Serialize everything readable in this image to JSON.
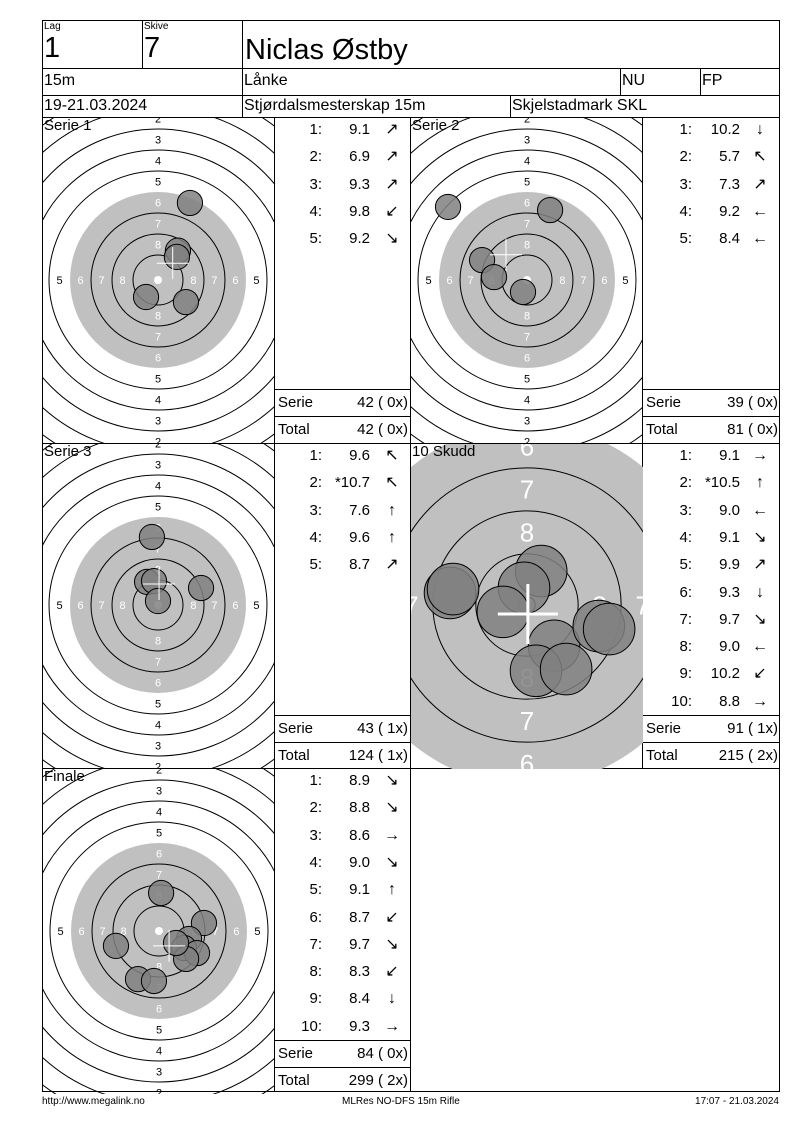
{
  "header": {
    "lag_label": "Lag",
    "lag": "1",
    "skive_label": "Skive",
    "skive": "7",
    "name": "Niclas Østby",
    "distance": "15m",
    "club": "Lånke",
    "class": "NU",
    "weapon": "FP",
    "date": "19-21.03.2024",
    "event": "Stjørdalsmesterskap 15m",
    "venue": "Skjelstadmark SKL"
  },
  "colors": {
    "target_gray": "#c0c0c0",
    "shot": "#808080",
    "mark": "#ffffff"
  },
  "shot_units": "rings",
  "panels": [
    {
      "id": "s1",
      "title": "Serie 1",
      "shots": [
        [
          1.52,
          -3.67
        ],
        [
          0.95,
          -1.4
        ],
        [
          0.9,
          -1.1
        ],
        [
          -0.57,
          0.81
        ],
        [
          1.33,
          1.05
        ]
      ],
      "mean": [
        0.7,
        -0.8
      ],
      "scores": [
        {
          "n": "1:",
          "v": "9.1",
          "dir": "↗"
        },
        {
          "n": "2:",
          "v": "6.9",
          "dir": "↗"
        },
        {
          "n": "3:",
          "v": "9.3",
          "dir": "↗"
        },
        {
          "n": "4:",
          "v": "9.8",
          "dir": "↙"
        },
        {
          "n": "5:",
          "v": "9.2",
          "dir": "↘"
        }
      ],
      "serie_label": "Serie",
      "serie": "42 ( 0x)",
      "total_label": "Total",
      "total": "42 ( 0x)"
    },
    {
      "id": "s2",
      "title": "Serie 2",
      "shots": [
        [
          1.1,
          -3.33
        ],
        [
          -3.76,
          -3.48
        ],
        [
          -2.14,
          -0.95
        ],
        [
          -1.57,
          -0.14
        ],
        [
          -0.19,
          0.57
        ]
      ],
      "mean": [
        -1.0,
        -1.2
      ],
      "scores": [
        {
          "n": "1:",
          "v": "10.2",
          "dir": "↓"
        },
        {
          "n": "2:",
          "v": "5.7",
          "dir": "↖"
        },
        {
          "n": "3:",
          "v": "7.3",
          "dir": "↗"
        },
        {
          "n": "4:",
          "v": "9.2",
          "dir": "←"
        },
        {
          "n": "5:",
          "v": "8.4",
          "dir": "←"
        }
      ],
      "serie_label": "Serie",
      "serie": "39 ( 0x)",
      "total_label": "Total",
      "total": "81 ( 0x)"
    },
    {
      "id": "s3",
      "title": "Serie 3",
      "shots": [
        [
          -0.29,
          -3.24
        ],
        [
          -0.52,
          -1.1
        ],
        [
          -0.19,
          -1.14
        ],
        [
          0.0,
          -0.19
        ],
        [
          2.05,
          -0.81
        ]
      ],
      "mean": [
        0.05,
        -1.0
      ],
      "scores": [
        {
          "n": "1:",
          "v": "9.6",
          "dir": "↖"
        },
        {
          "n": "2:",
          "v": "*10.7",
          "dir": "↖"
        },
        {
          "n": "3:",
          "v": "7.6",
          "dir": "↑"
        },
        {
          "n": "4:",
          "v": "9.6",
          "dir": "↑"
        },
        {
          "n": "5:",
          "v": "8.7",
          "dir": "↗"
        }
      ],
      "serie_label": "Serie",
      "serie": "43 ( 1x)",
      "total_label": "Total",
      "total": "124 ( 1x)"
    },
    {
      "id": "s10",
      "title": "10 Skudd",
      "shots": [
        [
          -1.79,
          -0.28
        ],
        [
          -1.72,
          -0.37
        ],
        [
          0.33,
          -0.79
        ],
        [
          -0.07,
          -0.4
        ],
        [
          -0.56,
          0.16
        ],
        [
          0.63,
          0.95
        ],
        [
          0.21,
          1.53
        ],
        [
          0.91,
          1.49
        ],
        [
          1.67,
          0.49
        ],
        [
          1.91,
          0.56
        ]
      ],
      "mean": [
        0.02,
        0.21
      ],
      "scores": [
        {
          "n": "1:",
          "v": "9.1",
          "dir": "→"
        },
        {
          "n": "2:",
          "v": "*10.5",
          "dir": "↑"
        },
        {
          "n": "3:",
          "v": "9.0",
          "dir": "←"
        },
        {
          "n": "4:",
          "v": "9.1",
          "dir": "↘"
        },
        {
          "n": "5:",
          "v": "9.9",
          "dir": "↗"
        },
        {
          "n": "6:",
          "v": "9.3",
          "dir": "↓"
        },
        {
          "n": "7:",
          "v": "9.7",
          "dir": "↘"
        },
        {
          "n": "8:",
          "v": "9.0",
          "dir": "←"
        },
        {
          "n": "9:",
          "v": "10.2",
          "dir": "↙"
        },
        {
          "n": "10:",
          "v": "8.8",
          "dir": "→"
        }
      ],
      "serie_label": "Serie",
      "serie": "91 ( 1x)",
      "total_label": "Total",
      "total": "215 ( 2x)"
    },
    {
      "id": "fin",
      "title": "Finale",
      "shots": [
        [
          0.1,
          -1.81
        ],
        [
          2.14,
          -0.38
        ],
        [
          1.43,
          0.38
        ],
        [
          1.19,
          0.81
        ],
        [
          1.81,
          1.05
        ],
        [
          1.29,
          1.33
        ],
        [
          -2.05,
          0.71
        ],
        [
          -1.0,
          2.29
        ],
        [
          -0.24,
          2.38
        ],
        [
          0.81,
          0.57
        ]
      ],
      "mean": [
        0.48,
        0.71
      ],
      "scores": [
        {
          "n": "1:",
          "v": "8.9",
          "dir": "↘"
        },
        {
          "n": "2:",
          "v": "8.8",
          "dir": "↘"
        },
        {
          "n": "3:",
          "v": "8.6",
          "dir": "→"
        },
        {
          "n": "4:",
          "v": "9.0",
          "dir": "↘"
        },
        {
          "n": "5:",
          "v": "9.1",
          "dir": "↑"
        },
        {
          "n": "6:",
          "v": "8.7",
          "dir": "↙"
        },
        {
          "n": "7:",
          "v": "9.7",
          "dir": "↘"
        },
        {
          "n": "8:",
          "v": "8.3",
          "dir": "↙"
        },
        {
          "n": "9:",
          "v": "8.4",
          "dir": "↓"
        },
        {
          "n": "10:",
          "v": "9.3",
          "dir": "→"
        }
      ],
      "serie_label": "Serie",
      "serie": "84 ( 0x)",
      "total_label": "Total",
      "total": "299 ( 2x)"
    }
  ],
  "footer": {
    "left": "http://www.megalink.no",
    "center": "MLRes NO-DFS 15m Rifle",
    "right": "17:07 - 21.03.2024"
  }
}
